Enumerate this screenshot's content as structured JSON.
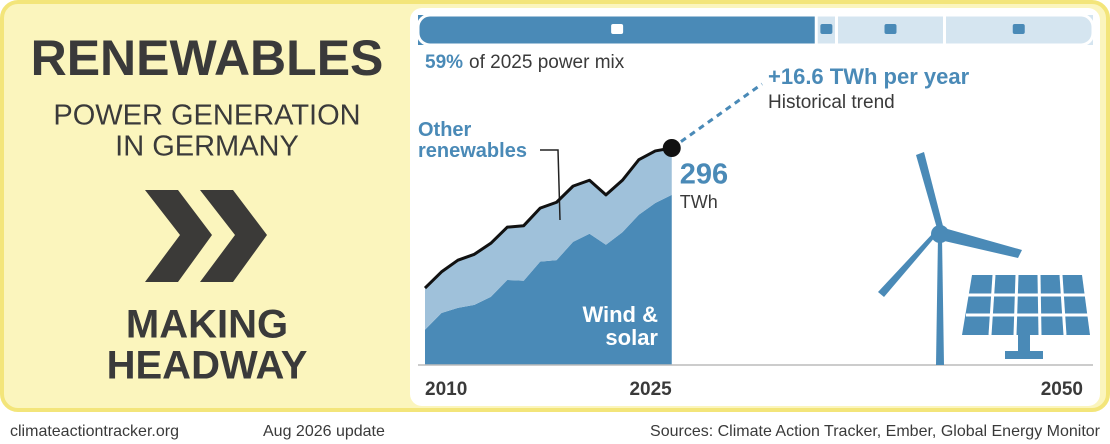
{
  "title": "RENEWABLES",
  "subtitle": [
    "POWER GENERATION",
    "IN GERMANY"
  ],
  "headline": [
    "MAKING",
    "HEADWAY"
  ],
  "power_mix": {
    "caption": "of 2025 power mix",
    "values": [
      59,
      3,
      16,
      22
    ],
    "value_labels": [
      "59%",
      null,
      null,
      null
    ],
    "colors": [
      "#4a8ab7",
      "#d5e5f0",
      "#d5e5f0",
      "#d5e5f0"
    ]
  },
  "chart_data": {
    "type": "area",
    "x": [
      2010,
      2011,
      2012,
      2013,
      2014,
      2015,
      2016,
      2017,
      2018,
      2019,
      2020,
      2021,
      2022,
      2023,
      2024,
      2025
    ],
    "series": [
      {
        "name": "Wind & solar",
        "color": "#4a8ab7",
        "values": [
          48,
          71,
          78,
          82,
          93,
          116,
          115,
          141,
          143,
          168,
          179,
          164,
          181,
          205,
          221,
          232
        ]
      },
      {
        "name": "Other renewables",
        "color": "#9fc1da",
        "values": [
          57,
          56,
          65,
          69,
          73,
          72,
          75,
          73,
          79,
          76,
          73,
          68,
          71,
          75,
          71,
          64
        ]
      }
    ],
    "total": 296,
    "total_unit": "TWh",
    "trend": [
      "+16.6 TWh per year",
      "Historical trend"
    ],
    "xlim": [
      2010,
      2050
    ],
    "xticks": [
      2010,
      2025,
      2050
    ]
  },
  "footer": {
    "site": "climateactiontracker.org",
    "date": "Aug 2026 update",
    "sources": "Sources: Climate Action Tracker, Ember, Global Energy Monitor"
  }
}
